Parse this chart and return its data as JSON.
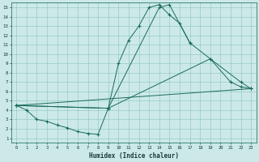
{
  "xlabel": "Humidex (Indice chaleur)",
  "bg_color": "#cce9e8",
  "grid_color": "#88c4c0",
  "line_color": "#1a6b5a",
  "xlim": [
    -0.5,
    23.5
  ],
  "ylim": [
    0.5,
    15.5
  ],
  "xticks": [
    0,
    1,
    2,
    3,
    4,
    5,
    6,
    7,
    8,
    9,
    10,
    11,
    12,
    13,
    14,
    15,
    16,
    17,
    18,
    19,
    20,
    21,
    22,
    23
  ],
  "yticks": [
    1,
    2,
    3,
    4,
    5,
    6,
    7,
    8,
    9,
    10,
    11,
    12,
    13,
    14,
    15
  ],
  "line1_x": [
    0,
    1,
    2,
    3,
    4,
    5,
    6,
    7,
    8,
    9,
    10,
    11,
    12,
    13,
    14,
    15,
    16,
    17
  ],
  "line1_y": [
    4.5,
    4.0,
    3.0,
    2.8,
    2.4,
    2.1,
    1.7,
    1.5,
    1.4,
    4.2,
    9.0,
    11.5,
    13.0,
    15.0,
    15.3,
    14.2,
    13.3,
    11.2
  ],
  "line2_x": [
    0,
    9,
    14,
    15,
    17,
    19,
    21,
    22,
    23
  ],
  "line2_y": [
    4.5,
    4.2,
    15.0,
    15.3,
    11.2,
    9.5,
    7.0,
    6.5,
    6.3
  ],
  "line3_x": [
    0,
    9,
    19,
    22,
    23
  ],
  "line3_y": [
    4.5,
    4.2,
    9.5,
    7.0,
    6.3
  ],
  "line4_x": [
    0,
    23
  ],
  "line4_y": [
    4.5,
    6.3
  ]
}
